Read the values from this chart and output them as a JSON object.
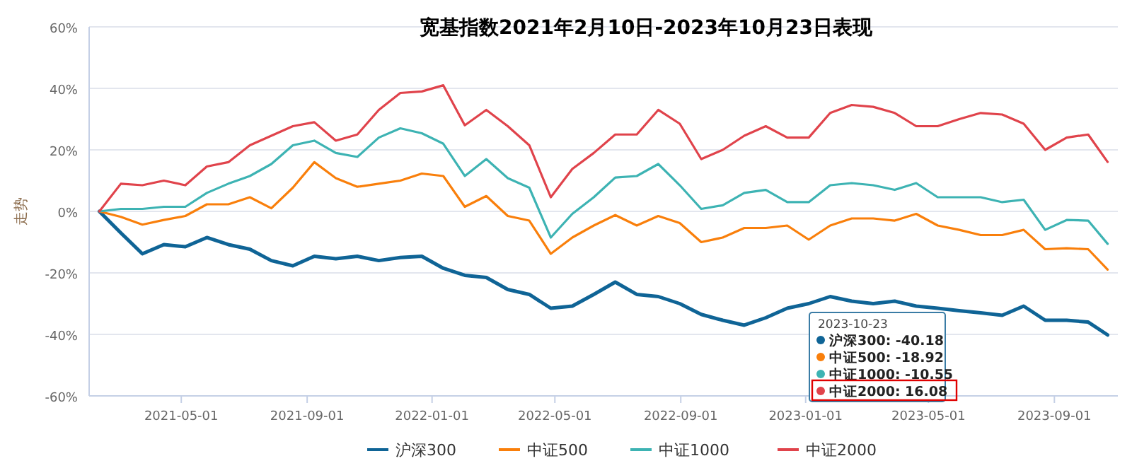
{
  "chart_data": {
    "type": "line",
    "title": "宽基指数2021年2月10日-2023年10月23日表现",
    "ylabel": "走势",
    "x": [
      "2021-02-10",
      "2021-03-03",
      "2021-03-24",
      "2021-04-14",
      "2021-05-05",
      "2021-05-26",
      "2021-06-16",
      "2021-07-07",
      "2021-07-28",
      "2021-08-18",
      "2021-09-08",
      "2021-09-29",
      "2021-10-20",
      "2021-11-10",
      "2021-12-01",
      "2021-12-22",
      "2022-01-12",
      "2022-02-02",
      "2022-02-23",
      "2022-03-16",
      "2022-04-06",
      "2022-04-27",
      "2022-05-18",
      "2022-06-08",
      "2022-06-29",
      "2022-07-20",
      "2022-08-10",
      "2022-08-31",
      "2022-09-21",
      "2022-10-12",
      "2022-11-02",
      "2022-11-23",
      "2022-12-14",
      "2023-01-04",
      "2023-01-25",
      "2023-02-15",
      "2023-03-08",
      "2023-03-29",
      "2023-04-19",
      "2023-05-10",
      "2023-05-31",
      "2023-06-21",
      "2023-07-12",
      "2023-08-02",
      "2023-08-23",
      "2023-09-13",
      "2023-10-04",
      "2023-10-23"
    ],
    "series": [
      {
        "name": "沪深300",
        "color": "#0f6496",
        "values": [
          0,
          -7,
          -13.8,
          -10.8,
          -11.5,
          -8.5,
          -10.8,
          -12.3,
          -16,
          -17.7,
          -14.6,
          -15.4,
          -14.6,
          -16,
          -15,
          -14.6,
          -18.5,
          -20.8,
          -21.5,
          -25.4,
          -27,
          -31.5,
          -30.8,
          -27,
          -23,
          -27,
          -27.7,
          -30,
          -33.5,
          -35.4,
          -37,
          -34.6,
          -31.5,
          -30,
          -27.7,
          -29.2,
          -30,
          -29.2,
          -30.8,
          -31.5,
          -32.3,
          -33,
          -33.8,
          -30.8,
          -35.4,
          -35.4,
          -36,
          -40.18
        ]
      },
      {
        "name": "中证500",
        "color": "#f97f0b",
        "values": [
          0,
          -1.8,
          -4.3,
          -2.8,
          -1.5,
          2.3,
          2.3,
          4.6,
          1,
          7.7,
          16,
          10.8,
          8,
          9,
          10,
          12.3,
          11.5,
          1.5,
          5,
          -1.5,
          -3,
          -13.8,
          -8.5,
          -4.6,
          -1.2,
          -4.6,
          -1.5,
          -3.8,
          -10,
          -8.5,
          -5.4,
          -5.4,
          -4.6,
          -9.2,
          -4.6,
          -2.3,
          -2.3,
          -3,
          -0.8,
          -4.6,
          -6,
          -7.7,
          -7.7,
          -6,
          -12.3,
          -12,
          -12.3,
          -18.92
        ]
      },
      {
        "name": "中证1000",
        "color": "#3db3b3",
        "values": [
          0,
          0.8,
          0.8,
          1.5,
          1.5,
          6,
          9,
          11.5,
          15.4,
          21.5,
          23,
          19,
          17.7,
          24,
          27,
          25.4,
          22,
          11.5,
          17,
          10.8,
          7.7,
          -8.5,
          -0.8,
          4.6,
          11,
          11.5,
          15.4,
          8.5,
          0.8,
          2,
          6,
          7,
          3,
          3,
          8.5,
          9.2,
          8.5,
          7,
          9.2,
          4.6,
          4.6,
          4.6,
          3,
          3.8,
          -6,
          -2.8,
          -3,
          -10.55
        ]
      },
      {
        "name": "中证2000",
        "color": "#e0434b",
        "values": [
          0,
          9,
          8.5,
          10,
          8.5,
          14.6,
          16,
          21.5,
          24.6,
          27.7,
          29,
          23,
          25,
          33,
          38.5,
          39,
          41,
          28,
          33,
          27.7,
          21.5,
          4.6,
          13.8,
          19,
          25,
          25,
          33,
          28.5,
          17,
          20,
          24.6,
          27.7,
          24,
          24,
          32,
          34.6,
          34,
          32,
          27.7,
          27.7,
          30,
          32,
          31.5,
          28.5,
          20,
          24,
          25,
          16.08
        ]
      }
    ],
    "xlim": [
      "2021-01-31",
      "2023-11-02"
    ],
    "xticks": [
      "2021-05-01",
      "2021-09-01",
      "2022-01-01",
      "2022-05-01",
      "2022-09-01",
      "2023-01-01",
      "2023-05-01",
      "2023-09-01"
    ],
    "ylim": [
      -60,
      60
    ],
    "yticks": [
      {
        "value": -60,
        "label": "-60%"
      },
      {
        "value": -40,
        "label": "-40%"
      },
      {
        "value": -20,
        "label": "-20%"
      },
      {
        "value": 0,
        "label": "0%"
      },
      {
        "value": 20,
        "label": "20%"
      },
      {
        "value": 40,
        "label": "40%"
      },
      {
        "value": 60,
        "label": "60%"
      }
    ],
    "grid": "y",
    "legend": "bottom",
    "annotations": [
      "2023-10-23",
      "沪深300: -40.18",
      "中证500: -18.92",
      "中证1000: -10.55",
      "中证2000: 16.08"
    ]
  }
}
